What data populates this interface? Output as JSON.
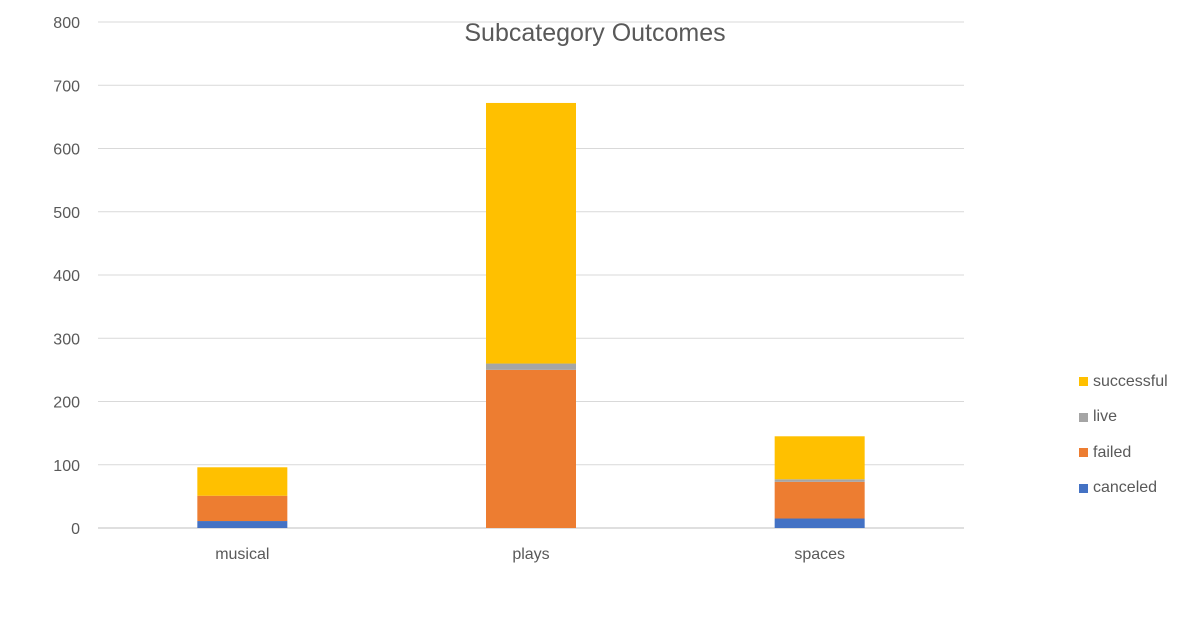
{
  "chart_data": {
    "type": "bar",
    "stacked": true,
    "title": "Subcategory Outcomes",
    "xlabel": "",
    "ylabel": "",
    "categories": [
      "musical",
      "plays",
      "spaces"
    ],
    "ylim": [
      0,
      800
    ],
    "yticks": [
      0,
      100,
      200,
      300,
      400,
      500,
      600,
      700,
      800
    ],
    "grid": true,
    "legend_position": "right",
    "series": [
      {
        "name": "canceled",
        "color": "#4472C4",
        "values": [
          11,
          0,
          15
        ]
      },
      {
        "name": "failed",
        "color": "#ED7D31",
        "values": [
          40,
          250,
          58
        ]
      },
      {
        "name": "live",
        "color": "#A5A5A5",
        "values": [
          0,
          10,
          4
        ]
      },
      {
        "name": "successful",
        "color": "#FFC000",
        "values": [
          45,
          412,
          68
        ]
      }
    ],
    "legend_order": [
      "successful",
      "live",
      "failed",
      "canceled"
    ]
  }
}
